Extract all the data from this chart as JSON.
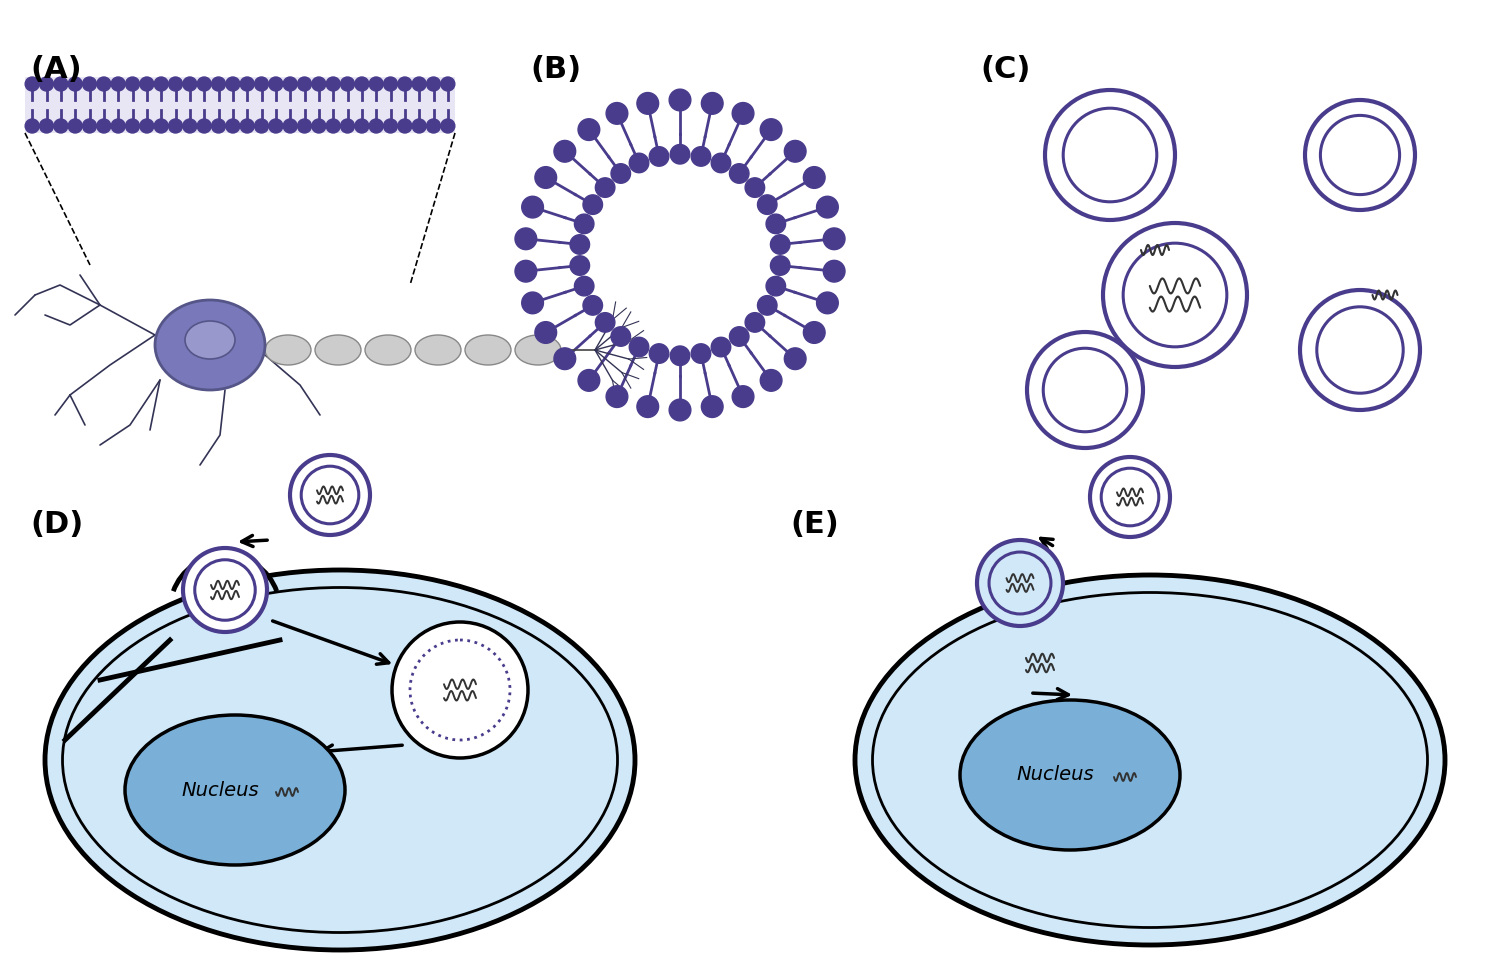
{
  "bg_color": "#ffffff",
  "purple": "#4a3c8c",
  "cell_blue": "#d0e8f8",
  "nucleus_blue": "#7ab0d8",
  "label_fontsize": 22,
  "label_fontweight": "bold",
  "panel_labels": [
    "(A)",
    "(B)",
    "(C)",
    "(D)",
    "(E)"
  ],
  "bilayer_color": "#4a3c8c",
  "rna_color": "#333333"
}
